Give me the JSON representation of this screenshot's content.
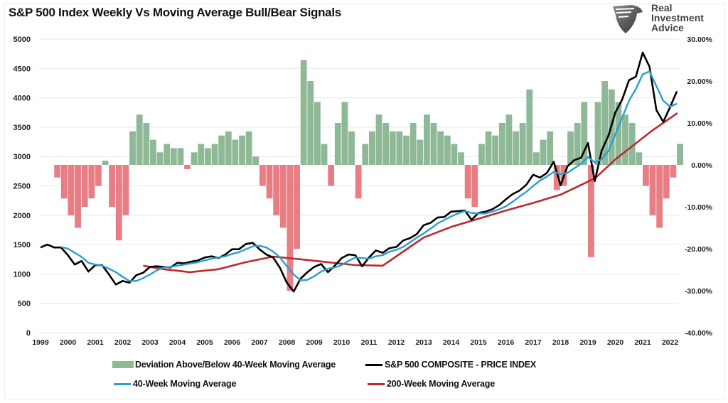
{
  "title": "S&P 500 Index Weekly Vs Moving Average Bull/Bear Signals",
  "logo": {
    "line1": "Real",
    "line2": "Investment",
    "line3": "Advice",
    "icon": "eagle-shield-icon"
  },
  "colors": {
    "price": "#000000",
    "ma40": "#2a9fd0",
    "ma200": "#c0282d",
    "dev_pos": "#8fb996",
    "dev_neg": "#e87e84",
    "grid": "#e6e6e6"
  },
  "chart_data": {
    "type": "line+bar",
    "title": "S&P 500 Index Weekly Vs Moving Average Bull/Bear Signals",
    "x_ticks": [
      "1999",
      "2000",
      "2001",
      "2002",
      "2003",
      "2004",
      "2005",
      "2006",
      "2007",
      "2008",
      "2009",
      "2010",
      "2011",
      "2012",
      "2013",
      "2014",
      "2015",
      "2016",
      "2017",
      "2018",
      "2019",
      "2020",
      "2021",
      "2022"
    ],
    "y_left": {
      "range": [
        0,
        5000
      ],
      "ticks": [
        "0",
        "500",
        "1000",
        "1500",
        "2000",
        "2500",
        "3000",
        "3500",
        "4000",
        "4500",
        "5000"
      ]
    },
    "y_right": {
      "range": [
        -40,
        30
      ],
      "ticks": [
        "-40.00%",
        "-30.00%",
        "-20.00%",
        "-10.00%",
        "0.00%",
        "10.00%",
        "20.00%",
        "30.00%"
      ]
    },
    "grid": true,
    "legend_placement": "bottom",
    "x_start": 1999.0,
    "x_step": 0.25,
    "series": [
      {
        "name": "Deviation Above/Below 40-Week Moving Average",
        "type": "bar",
        "axis": "right",
        "values": [
          0,
          0,
          -3,
          -8,
          -12,
          -15,
          -10,
          -8,
          -5,
          1,
          -10,
          -18,
          -12,
          8,
          12,
          10,
          6,
          3,
          5,
          4,
          4,
          -1,
          3,
          5,
          4,
          5,
          7,
          8,
          6,
          7,
          8,
          2,
          -5,
          -8,
          -12,
          -15,
          -30,
          -20,
          25,
          20,
          15,
          5,
          -5,
          10,
          15,
          8,
          -8,
          5,
          8,
          12,
          10,
          8,
          8,
          7,
          10,
          6,
          12,
          10,
          8,
          7,
          5,
          3,
          -8,
          -10,
          5,
          8,
          7,
          10,
          12,
          8,
          10,
          18,
          3,
          6,
          8,
          -6,
          -5,
          8,
          10,
          15,
          -22,
          15,
          20,
          18,
          15,
          12,
          10,
          3,
          -5,
          -12,
          -15,
          -8,
          -3,
          5
        ]
      },
      {
        "name": "S&P 500 COMPOSITE - PRICE INDEX",
        "type": "line",
        "axis": "left",
        "values": [
          1450,
          1500,
          1450,
          1450,
          1320,
          1160,
          1220,
          1040,
          1150,
          1150,
          990,
          820,
          880,
          850,
          980,
          1020,
          1120,
          1130,
          1120,
          1110,
          1190,
          1180,
          1210,
          1230,
          1280,
          1300,
          1270,
          1330,
          1420,
          1420,
          1510,
          1530,
          1420,
          1330,
          1280,
          1100,
          850,
          700,
          920,
          1030,
          1120,
          1170,
          1030,
          1140,
          1270,
          1330,
          1320,
          1130,
          1280,
          1400,
          1360,
          1440,
          1460,
          1570,
          1610,
          1680,
          1830,
          1870,
          1960,
          1970,
          2060,
          2070,
          2080,
          1920,
          2040,
          2060,
          2100,
          2170,
          2270,
          2360,
          2420,
          2520,
          2690,
          2640,
          2720,
          2910,
          2510,
          2830,
          2940,
          2980,
          3230,
          2580,
          3100,
          3360,
          3750,
          3970,
          4300,
          4360,
          4770,
          4530,
          3790,
          3590,
          3840,
          4110
        ]
      },
      {
        "name": "40-Week Moving Average",
        "type": "line",
        "axis": "left",
        "x_start": 1999.75,
        "values": [
          1460,
          1430,
          1360,
          1290,
          1190,
          1160,
          1140,
          1090,
          1030,
          950,
          880,
          880,
          930,
          990,
          1060,
          1110,
          1120,
          1140,
          1160,
          1180,
          1200,
          1230,
          1260,
          1280,
          1300,
          1340,
          1370,
          1420,
          1470,
          1480,
          1450,
          1380,
          1280,
          1130,
          990,
          890,
          900,
          960,
          1040,
          1090,
          1110,
          1150,
          1220,
          1280,
          1270,
          1260,
          1300,
          1320,
          1380,
          1410,
          1460,
          1540,
          1620,
          1690,
          1770,
          1860,
          1920,
          1980,
          2030,
          2070,
          2040,
          2030,
          2030,
          2060,
          2100,
          2150,
          2230,
          2320,
          2400,
          2500,
          2590,
          2660,
          2740,
          2700,
          2720,
          2800,
          2880,
          2990,
          2900,
          2950,
          3100,
          3380,
          3660,
          3950,
          4150,
          4400,
          4450,
          4200,
          3950,
          3850,
          3900
        ]
      },
      {
        "name": "200-Week Moving Average",
        "type": "line",
        "axis": "left",
        "points": [
          [
            2002.75,
            1140
          ],
          [
            2003.5,
            1080
          ],
          [
            2004.45,
            1030
          ],
          [
            2005.5,
            1080
          ],
          [
            2006.5,
            1200
          ],
          [
            2007.5,
            1295
          ],
          [
            2008.5,
            1250
          ],
          [
            2009.5,
            1200
          ],
          [
            2010.5,
            1150
          ],
          [
            2011.5,
            1140
          ],
          [
            2012.25,
            1380
          ],
          [
            2013,
            1620
          ],
          [
            2014,
            1800
          ],
          [
            2015,
            1940
          ],
          [
            2016,
            2080
          ],
          [
            2017,
            2210
          ],
          [
            2018,
            2350
          ],
          [
            2019.26,
            2630
          ],
          [
            2020,
            2950
          ],
          [
            2021.34,
            3440
          ],
          [
            2022.27,
            3740
          ]
        ]
      }
    ]
  }
}
